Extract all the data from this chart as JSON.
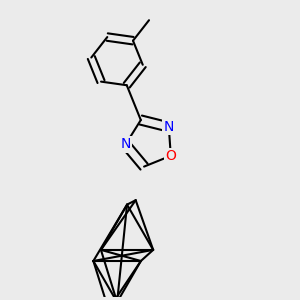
{
  "background_color": "#ebebeb",
  "bond_color": "#000000",
  "bond_width": 1.5,
  "atom_colors": {
    "N": "#0000ff",
    "O": "#ff0000"
  },
  "font_size_atom": 10,
  "figsize": [
    3.0,
    3.0
  ],
  "dpi": 100
}
